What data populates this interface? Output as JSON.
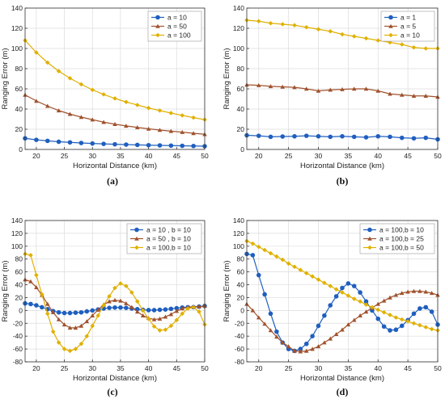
{
  "chart_data": [
    {
      "type": "line",
      "caption": "(a)",
      "xlabel": "Horizontal Distance (km)",
      "ylabel": "Ranging Error (m)",
      "xlim": [
        18,
        50
      ],
      "ylim": [
        0,
        140
      ],
      "xticks": [
        20,
        25,
        30,
        35,
        40,
        45,
        50
      ],
      "yticks": [
        0,
        20,
        40,
        60,
        80,
        100,
        120,
        140
      ],
      "grid": true,
      "legend": "top-right",
      "x": [
        18,
        20,
        22,
        24,
        26,
        28,
        30,
        32,
        34,
        36,
        38,
        40,
        42,
        44,
        46,
        48,
        50
      ],
      "series": [
        {
          "name": "a = 10",
          "color": "#1f5fbf",
          "marker": "circle",
          "values": [
            11,
            9.5,
            8.5,
            7.6,
            7,
            6.4,
            5.9,
            5.5,
            5.1,
            4.8,
            4.5,
            4.2,
            4,
            3.8,
            3.6,
            3.4,
            3.2
          ]
        },
        {
          "name": "a = 50",
          "color": "#a0522d",
          "marker": "triangle",
          "values": [
            54,
            48,
            43,
            38.5,
            35,
            32,
            29.5,
            27,
            25,
            23.3,
            21.8,
            20.4,
            19.2,
            18.1,
            17.1,
            16,
            15
          ]
        },
        {
          "name": "a = 100",
          "color": "#e0b000",
          "marker": "diamond",
          "values": [
            108,
            96,
            86,
            77.5,
            70.5,
            64.5,
            59,
            54.5,
            50.5,
            47,
            44,
            41,
            38.5,
            36,
            33.7,
            31.5,
            29.5
          ]
        }
      ]
    },
    {
      "type": "line",
      "caption": "(b)",
      "xlabel": "Horizontal Distance (km)",
      "ylabel": "Ranging Error (m)",
      "xlim": [
        18,
        50
      ],
      "ylim": [
        0,
        140
      ],
      "xticks": [
        20,
        25,
        30,
        35,
        40,
        45,
        50
      ],
      "yticks": [
        0,
        20,
        40,
        60,
        80,
        100,
        120,
        140
      ],
      "grid": true,
      "legend": "top-right",
      "x": [
        18,
        20,
        22,
        24,
        26,
        28,
        30,
        32,
        34,
        36,
        38,
        40,
        42,
        44,
        46,
        48,
        50
      ],
      "series": [
        {
          "name": "a = 1",
          "color": "#1f5fbf",
          "marker": "circle",
          "values": [
            14,
            13.5,
            12.5,
            12.8,
            13,
            13.5,
            13,
            12.5,
            13,
            12.5,
            12,
            13,
            12.5,
            11.5,
            11,
            11.5,
            10
          ]
        },
        {
          "name": "a = 5",
          "color": "#a0522d",
          "marker": "triangle",
          "values": [
            64,
            63.5,
            62.5,
            62,
            61.5,
            60,
            58,
            59,
            59.5,
            60,
            60,
            58,
            55,
            54,
            53,
            53,
            52
          ]
        },
        {
          "name": "a = 10",
          "color": "#e0b000",
          "marker": "diamond",
          "values": [
            128,
            127,
            125,
            124,
            123,
            121,
            119,
            117,
            114,
            112,
            110,
            108,
            106,
            104,
            101,
            100,
            100
          ]
        }
      ]
    },
    {
      "type": "line",
      "caption": "(c)",
      "xlabel": "Horizontal Distance (km)",
      "ylabel": "Ranging Error (m)",
      "xlim": [
        18,
        50
      ],
      "ylim": [
        -80,
        140
      ],
      "xticks": [
        20,
        25,
        30,
        35,
        40,
        45,
        50
      ],
      "yticks": [
        -80,
        -60,
        -40,
        -20,
        0,
        20,
        40,
        60,
        80,
        100,
        120,
        140
      ],
      "grid": true,
      "legend": "top-right",
      "x": [
        18,
        19,
        20,
        21,
        22,
        23,
        24,
        25,
        26,
        27,
        28,
        29,
        30,
        31,
        32,
        33,
        34,
        35,
        36,
        37,
        38,
        39,
        40,
        41,
        42,
        43,
        44,
        45,
        46,
        47,
        48,
        49,
        50
      ],
      "series": [
        {
          "name": "a = 10 , b = 10",
          "color": "#1f5fbf",
          "marker": "circle",
          "values": [
            11,
            10,
            8,
            5,
            2,
            -1,
            -3,
            -4,
            -4,
            -3.5,
            -3,
            -1.5,
            0,
            1.5,
            3,
            4,
            4.5,
            4.5,
            4,
            3,
            2,
            1,
            0.5,
            0.5,
            1,
            1.5,
            2.5,
            3.5,
            4.5,
            5,
            5,
            6,
            7
          ]
        },
        {
          "name": "a = 50 , b = 10",
          "color": "#a0522d",
          "marker": "triangle",
          "values": [
            48,
            45,
            36,
            24,
            10,
            -3,
            -14,
            -22,
            -27,
            -27,
            -24,
            -17,
            -8,
            1,
            9,
            14,
            16,
            15,
            11,
            5,
            -2,
            -8,
            -12,
            -14,
            -13,
            -10,
            -6,
            -1,
            3,
            5,
            6,
            6,
            7
          ]
        },
        {
          "name": "a = 100,b = 10",
          "color": "#e0b000",
          "marker": "diamond",
          "values": [
            88,
            86,
            55,
            25,
            -5,
            -33,
            -50,
            -60,
            -63,
            -60,
            -52,
            -40,
            -24,
            -8,
            8,
            22,
            35,
            42,
            38,
            28,
            14,
            0,
            -13,
            -25,
            -31,
            -30,
            -24,
            -15,
            -5,
            3,
            5,
            -2,
            -22
          ]
        }
      ]
    },
    {
      "type": "line",
      "caption": "(d)",
      "xlabel": "Horizontal Distance (km)",
      "ylabel": "Ranging Error (m)",
      "xlim": [
        18,
        50
      ],
      "ylim": [
        -80,
        140
      ],
      "xticks": [
        20,
        25,
        30,
        35,
        40,
        45,
        50
      ],
      "yticks": [
        -80,
        -60,
        -40,
        -20,
        0,
        20,
        40,
        60,
        80,
        100,
        120,
        140
      ],
      "grid": true,
      "legend": "top-right",
      "x": [
        18,
        19,
        20,
        21,
        22,
        23,
        24,
        25,
        26,
        27,
        28,
        29,
        30,
        31,
        32,
        33,
        34,
        35,
        36,
        37,
        38,
        39,
        40,
        41,
        42,
        43,
        44,
        45,
        46,
        47,
        48,
        49,
        50
      ],
      "series": [
        {
          "name": "a = 100,b = 10",
          "color": "#1f5fbf",
          "marker": "circle",
          "values": [
            88,
            86,
            55,
            25,
            -5,
            -33,
            -50,
            -60,
            -63,
            -60,
            -52,
            -40,
            -24,
            -8,
            8,
            22,
            35,
            42,
            38,
            28,
            14,
            0,
            -13,
            -25,
            -31,
            -30,
            -24,
            -15,
            -5,
            3,
            5,
            -2,
            -22
          ]
        },
        {
          "name": "a = 100,b = 25",
          "color": "#a0522d",
          "marker": "triangle",
          "values": [
            10,
            0,
            -11,
            -21,
            -31,
            -41,
            -50,
            -56,
            -63,
            -64,
            -63,
            -60,
            -56,
            -50,
            -44,
            -37,
            -30,
            -22,
            -15,
            -8,
            -2,
            4,
            10,
            15,
            20,
            24,
            27,
            29,
            30,
            30,
            29,
            27,
            24
          ]
        },
        {
          "name": "a = 100,b = 50",
          "color": "#e0b000",
          "marker": "diamond",
          "values": [
            108,
            104,
            99,
            94,
            89,
            84,
            79,
            73,
            68,
            63,
            58,
            53,
            48,
            43,
            38,
            33,
            28,
            23,
            18,
            14,
            9,
            5,
            1,
            -3,
            -7,
            -11,
            -14,
            -17,
            -20,
            -23,
            -26,
            -29,
            -31
          ]
        }
      ]
    }
  ]
}
